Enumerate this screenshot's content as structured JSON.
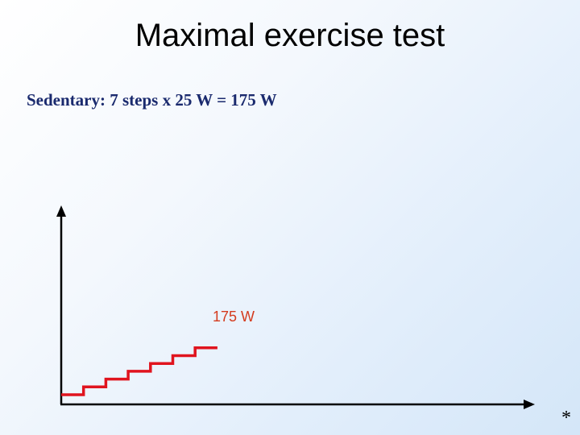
{
  "slide": {
    "title": "Maximal exercise test",
    "subtitle_lead": "Sedentary:",
    "subtitle_rest": "7 steps x 25 W = 175 W",
    "footnote_mark": "*"
  },
  "diagram": {
    "steps": 7,
    "step_increment_w": 25,
    "peak_label": "175 W",
    "step_color": "#e0141e",
    "axis_color": "#000000",
    "label_color": "#d43b1e"
  }
}
